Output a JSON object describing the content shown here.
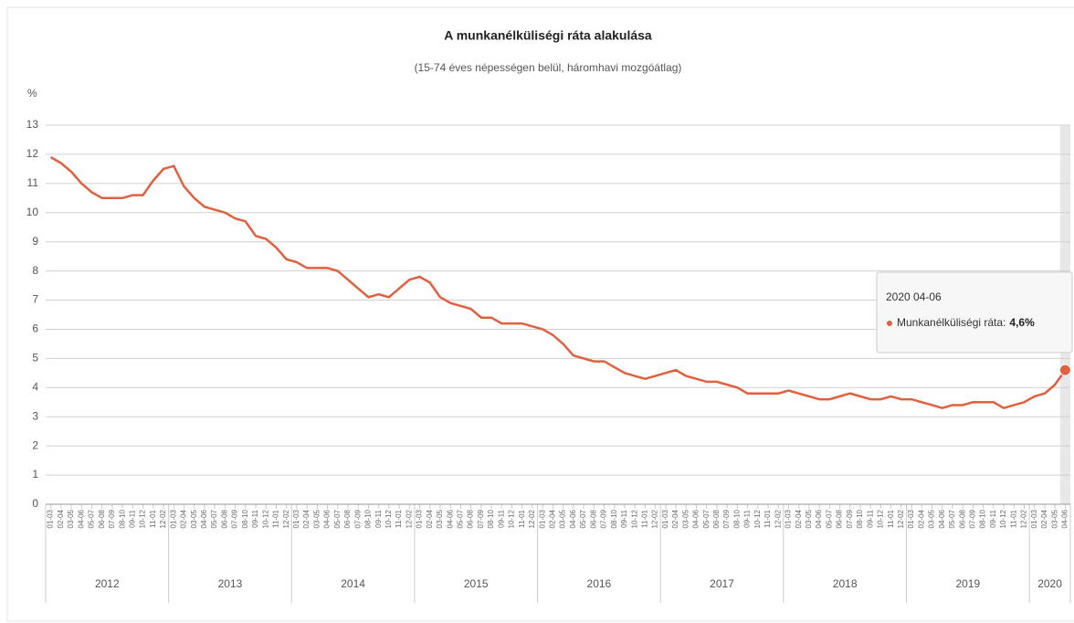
{
  "chart_data": {
    "type": "line",
    "title": "A munkanélküliségi ráta alakulása",
    "subtitle": "(15-74 éves népességen belül, háromhavi mozgóátlag)",
    "y_label": "%",
    "category_groups": [
      {
        "name": "2012",
        "categories": [
          "01-03",
          "02-04",
          "03-05",
          "04-06",
          "05-07",
          "06-08",
          "07-09",
          "08-10",
          "09-11",
          "10-12",
          "11-01",
          "12-02"
        ]
      },
      {
        "name": "2013",
        "categories": [
          "01-03",
          "02-04",
          "03-05",
          "04-06",
          "05-07",
          "06-08",
          "07-09",
          "08-10",
          "09-11",
          "10-12",
          "11-01",
          "12-02"
        ]
      },
      {
        "name": "2014",
        "categories": [
          "01-03",
          "02-04",
          "03-05",
          "04-06",
          "05-07",
          "06-08",
          "07-09",
          "08-10",
          "09-11",
          "10-12",
          "11-01",
          "12-02"
        ]
      },
      {
        "name": "2015",
        "categories": [
          "01-03",
          "02-04",
          "03-05",
          "04-06",
          "05-07",
          "06-08",
          "07-09",
          "08-10",
          "09-11",
          "10-12",
          "11-01",
          "12-02"
        ]
      },
      {
        "name": "2016",
        "categories": [
          "01-03",
          "02-04",
          "03-05",
          "04-06",
          "05-07",
          "06-08",
          "07-09",
          "08-10",
          "09-11",
          "10-12",
          "11-01",
          "12-02"
        ]
      },
      {
        "name": "2017",
        "categories": [
          "01-03",
          "02-04",
          "03-05",
          "04-06",
          "05-07",
          "06-08",
          "07-09",
          "08-10",
          "09-11",
          "10-12",
          "11-01",
          "12-02"
        ]
      },
      {
        "name": "2018",
        "categories": [
          "01-03",
          "02-04",
          "03-05",
          "04-06",
          "05-07",
          "06-08",
          "07-09",
          "08-10",
          "09-11",
          "10-12",
          "11-01",
          "12-02"
        ]
      },
      {
        "name": "2019",
        "categories": [
          "01-03",
          "02-04",
          "03-05",
          "04-06",
          "05-07",
          "06-08",
          "07-09",
          "08-10",
          "09-11",
          "10-12",
          "11-01",
          "12-02"
        ]
      },
      {
        "name": "2020",
        "categories": [
          "01-03",
          "02-04",
          "03-05",
          "04-06"
        ]
      }
    ],
    "series": [
      {
        "name": "Munkanélküliségi ráta:",
        "color": "#e0603f",
        "values": [
          11.9,
          11.7,
          11.4,
          11.0,
          10.7,
          10.5,
          10.5,
          10.5,
          10.6,
          10.6,
          11.1,
          11.5,
          11.6,
          10.9,
          10.5,
          10.2,
          10.1,
          10.0,
          9.8,
          9.7,
          9.2,
          9.1,
          8.8,
          8.4,
          8.3,
          8.1,
          8.1,
          8.1,
          8.0,
          7.7,
          7.4,
          7.1,
          7.2,
          7.1,
          7.4,
          7.7,
          7.8,
          7.6,
          7.1,
          6.9,
          6.8,
          6.7,
          6.4,
          6.4,
          6.2,
          6.2,
          6.2,
          6.1,
          6.0,
          5.8,
          5.5,
          5.1,
          5.0,
          4.9,
          4.9,
          4.7,
          4.5,
          4.4,
          4.3,
          4.4,
          4.5,
          4.6,
          4.4,
          4.3,
          4.2,
          4.2,
          4.1,
          4.0,
          3.8,
          3.8,
          3.8,
          3.8,
          3.9,
          3.8,
          3.7,
          3.6,
          3.6,
          3.7,
          3.8,
          3.7,
          3.6,
          3.6,
          3.7,
          3.6,
          3.6,
          3.5,
          3.4,
          3.3,
          3.4,
          3.4,
          3.5,
          3.5,
          3.5,
          3.3,
          3.4,
          3.5,
          3.7,
          3.8,
          4.1,
          4.6
        ]
      }
    ],
    "ylim": [
      0,
      13
    ],
    "yticks": [
      0,
      1,
      2,
      3,
      4,
      5,
      6,
      7,
      8,
      9,
      10,
      11,
      12,
      13
    ],
    "grid": true,
    "tooltip": {
      "header": "2020 04-06",
      "value_label": "4,6%"
    }
  }
}
